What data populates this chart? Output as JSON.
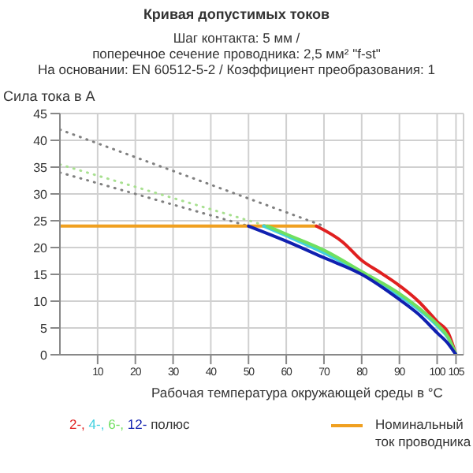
{
  "chart_data": {
    "type": "line",
    "title": "Кривая допустимых токов",
    "subtitle": "Шаг контакта: 5 мм /\nпоперечное сечение проводника: 2,5 мм² \"f-st\"\nНа основании: EN 60512-5-2 / Коэффициент преобразования: 1",
    "ylabel": "Сила тока в А",
    "xlabel": "Рабочая температура окружающей среды в °C",
    "legend_title": "полюс",
    "legend": "bottom",
    "grid": true,
    "marker": "none",
    "xlim": [
      0,
      107
    ],
    "xticks": [
      10,
      20,
      30,
      40,
      50,
      60,
      70,
      80,
      90,
      100,
      105
    ],
    "ylim": [
      0,
      45
    ],
    "yticks": [
      0,
      5,
      10,
      15,
      20,
      25,
      30,
      35,
      40,
      45
    ],
    "series": [
      {
        "line_style": "dotted",
        "color": "#808080",
        "x": [
          0,
          70
        ],
        "values": [
          42,
          24
        ]
      },
      {
        "line_style": "dotted",
        "color": "#a8e090",
        "x": [
          0,
          55
        ],
        "values": [
          35.5,
          24
        ]
      },
      {
        "line_style": "dotted",
        "color": "#808080",
        "x": [
          0,
          50
        ],
        "values": [
          34,
          24
        ]
      },
      {
        "name": "Номинальный ток проводника",
        "color": "#f0a020",
        "x": [
          0,
          68
        ],
        "values": [
          24,
          24
        ]
      },
      {
        "name": "2-,",
        "color": "#e02020",
        "x": [
          68,
          75,
          80,
          85,
          90,
          95,
          100,
          103,
          105
        ],
        "values": [
          24,
          21,
          17.6,
          15.3,
          12.9,
          10,
          6.2,
          4,
          0
        ]
      },
      {
        "name": "4-,",
        "color": "#40d0e0",
        "x": [
          54,
          60,
          70,
          80,
          90,
          95,
          100,
          103,
          105
        ],
        "values": [
          24,
          22.2,
          19,
          15.2,
          11,
          8.5,
          5.4,
          3,
          0
        ]
      },
      {
        "name": "6-,",
        "color": "#70e060",
        "x": [
          55,
          60,
          70,
          80,
          90,
          95,
          100,
          103,
          105
        ],
        "values": [
          24,
          22.5,
          19.5,
          15.5,
          11.4,
          8.8,
          5.7,
          3.2,
          0
        ]
      },
      {
        "name": "12-",
        "color": "#1020b0",
        "x": [
          50,
          60,
          70,
          80,
          90,
          95,
          100,
          103,
          105
        ],
        "values": [
          24,
          21.2,
          18.1,
          15,
          10.3,
          7.6,
          4.1,
          2,
          0
        ]
      }
    ]
  }
}
